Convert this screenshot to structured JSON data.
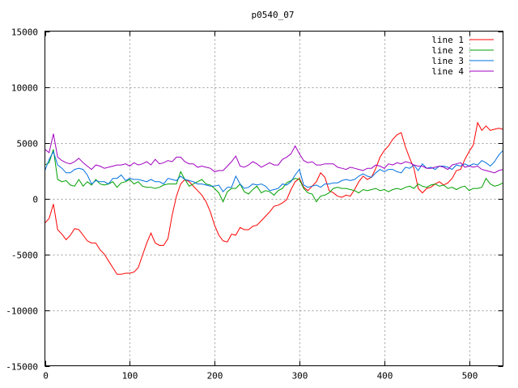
{
  "chart_data": {
    "type": "line",
    "title": "p0540_07",
    "xlabel": "",
    "ylabel": "",
    "xlim": [
      0,
      540
    ],
    "ylim": [
      -15000,
      15000
    ],
    "grid": true,
    "legend_position": "top-right",
    "x_ticks": [
      "0",
      "100",
      "200",
      "300",
      "400",
      "500"
    ],
    "x_tick_values": [
      0,
      100,
      200,
      300,
      400,
      500
    ],
    "y_ticks": [
      "15000",
      "10000",
      "5000",
      "0",
      "-5000",
      "-10000",
      "-15000"
    ],
    "y_tick_values": [
      15000,
      10000,
      5000,
      0,
      -5000,
      -10000,
      -15000
    ],
    "x": [
      0,
      5,
      10,
      15,
      20,
      25,
      30,
      35,
      40,
      45,
      50,
      55,
      60,
      65,
      70,
      75,
      80,
      85,
      90,
      95,
      100,
      105,
      110,
      115,
      120,
      125,
      130,
      135,
      140,
      145,
      150,
      155,
      160,
      165,
      170,
      175,
      180,
      185,
      190,
      195,
      200,
      205,
      210,
      215,
      220,
      225,
      230,
      235,
      240,
      245,
      250,
      255,
      260,
      265,
      270,
      275,
      280,
      285,
      290,
      295,
      300,
      305,
      310,
      315,
      320,
      325,
      330,
      335,
      340,
      345,
      350,
      355,
      360,
      365,
      370,
      375,
      380,
      385,
      390,
      395,
      400,
      405,
      410,
      415,
      420,
      425,
      430,
      435,
      440,
      445,
      450,
      455,
      460,
      465,
      470,
      475,
      480,
      485,
      490,
      495,
      500,
      505,
      510,
      515,
      520,
      525,
      530,
      535,
      540
    ],
    "series": [
      {
        "name": "line 1",
        "color": "#ff0000",
        "values": [
          -2200,
          -1800,
          -500,
          -2800,
          -3200,
          -3700,
          -3300,
          -2700,
          -2800,
          -3300,
          -3800,
          -4000,
          -4000,
          -4600,
          -5000,
          -5600,
          -6200,
          -6800,
          -6800,
          -6700,
          -6700,
          -6600,
          -6200,
          -5100,
          -4000,
          -3100,
          -4000,
          -4200,
          -4200,
          -3600,
          -1500,
          200,
          1300,
          1700,
          1500,
          1100,
          700,
          300,
          -300,
          -1200,
          -2400,
          -3300,
          -3800,
          -3900,
          -3200,
          -3300,
          -2600,
          -2800,
          -2800,
          -2500,
          -2400,
          -2000,
          -1600,
          -1200,
          -700,
          -600,
          -400,
          -100,
          800,
          1500,
          1800,
          1000,
          700,
          1100,
          1500,
          2300,
          1900,
          700,
          500,
          200,
          100,
          300,
          200,
          800,
          1500,
          2000,
          1700,
          1900,
          2700,
          3700,
          4300,
          4700,
          5300,
          5700,
          5900,
          4600,
          3600,
          2700,
          900,
          500,
          900,
          1000,
          1300,
          1500,
          1200,
          1400,
          1800,
          2500,
          2600,
          3500,
          4200,
          4800,
          6800,
          6100,
          6500,
          6100,
          6200,
          6300,
          6200
        ]
      },
      {
        "name": "line 2",
        "color": "#00a000",
        "values": [
          3000,
          3200,
          4400,
          1700,
          1500,
          1600,
          1200,
          1100,
          1700,
          1100,
          1500,
          1200,
          1700,
          1300,
          1200,
          1300,
          1500,
          1000,
          1400,
          1500,
          1700,
          1300,
          1500,
          1100,
          1000,
          1000,
          900,
          1000,
          1200,
          1300,
          1300,
          1300,
          2400,
          1700,
          1100,
          1300,
          1500,
          1700,
          1300,
          1200,
          900,
          500,
          -300,
          600,
          900,
          900,
          1300,
          600,
          400,
          800,
          1100,
          500,
          700,
          600,
          300,
          700,
          900,
          1400,
          1600,
          1800,
          1700,
          900,
          500,
          400,
          -300,
          200,
          300,
          500,
          900,
          1000,
          900,
          900,
          800,
          700,
          500,
          800,
          700,
          800,
          900,
          700,
          800,
          600,
          800,
          900,
          800,
          1000,
          1100,
          900,
          1300,
          1100,
          1000,
          1200,
          1300,
          1100,
          1200,
          900,
          1000,
          800,
          1000,
          1100,
          700,
          900,
          900,
          1000,
          1800,
          1300,
          1100,
          1200,
          1400
        ]
      },
      {
        "name": "line 3",
        "color": "#0070e0",
        "values": [
          2500,
          3500,
          4200,
          3000,
          2700,
          2300,
          2300,
          2600,
          2700,
          2600,
          2100,
          1300,
          1600,
          1500,
          1500,
          1300,
          1800,
          1800,
          2100,
          1600,
          1800,
          1700,
          1700,
          1600,
          1500,
          1700,
          1500,
          1500,
          1300,
          1800,
          1700,
          1600,
          2000,
          1700,
          1600,
          1500,
          1300,
          1300,
          1200,
          1100,
          1100,
          1200,
          600,
          1000,
          1000,
          2000,
          1300,
          900,
          1000,
          1300,
          1200,
          1300,
          1100,
          700,
          800,
          900,
          1300,
          1200,
          1500,
          2100,
          2600,
          1200,
          1000,
          1100,
          1200,
          1000,
          1300,
          1300,
          1400,
          1400,
          1600,
          1700,
          1600,
          1700,
          2000,
          2200,
          2000,
          1900,
          2300,
          2600,
          2400,
          2600,
          2600,
          2400,
          2300,
          2800,
          2700,
          3000,
          2500,
          3100,
          2700,
          2800,
          2600,
          2900,
          2900,
          2800,
          2600,
          3000,
          2900,
          3100,
          2900,
          3100,
          3000,
          3400,
          3200,
          2900,
          3300,
          3900,
          4300
        ]
      },
      {
        "name": "line 4",
        "color": "#a000c0",
        "values": [
          4400,
          4100,
          5800,
          3700,
          3400,
          3200,
          3100,
          3300,
          3600,
          3200,
          2900,
          2600,
          3000,
          2900,
          2700,
          2800,
          2900,
          3000,
          3000,
          3100,
          2900,
          3200,
          3000,
          3100,
          3300,
          3000,
          3500,
          3100,
          3200,
          3400,
          3300,
          3700,
          3700,
          3300,
          3100,
          3100,
          2800,
          2900,
          2800,
          2700,
          2400,
          2500,
          2500,
          2900,
          3300,
          3800,
          2900,
          2800,
          3000,
          3300,
          3100,
          2800,
          3000,
          3200,
          3000,
          3000,
          3500,
          3700,
          4000,
          4700,
          4000,
          3400,
          3200,
          3300,
          3000,
          3000,
          3100,
          3100,
          3100,
          2800,
          2700,
          2600,
          2800,
          2700,
          2600,
          2500,
          2700,
          2700,
          3000,
          2900,
          2700,
          3100,
          3000,
          3200,
          3100,
          3300,
          3200,
          3000,
          2900,
          2900,
          2700,
          2700,
          2800,
          2900,
          2800,
          2600,
          3000,
          3100,
          3200,
          2800,
          2900,
          2800,
          2900,
          2600,
          2500,
          2400,
          2300,
          2500,
          2600
        ]
      }
    ]
  }
}
